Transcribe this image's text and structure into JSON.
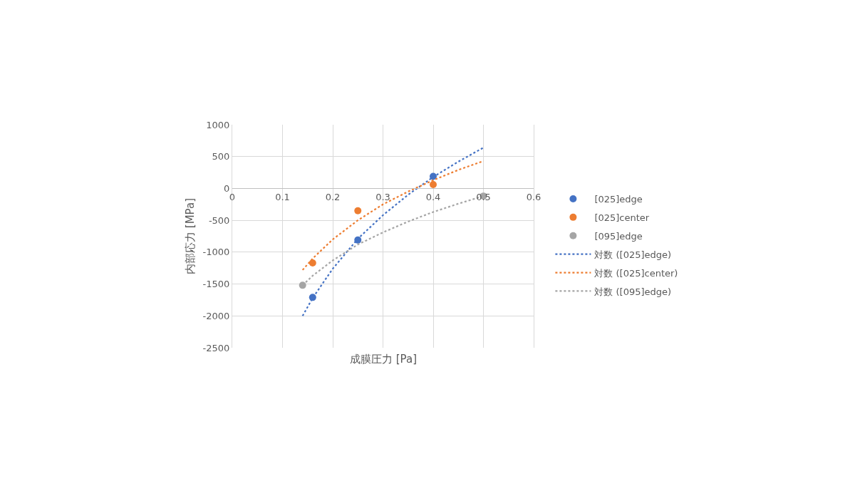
{
  "chart_data": {
    "type": "scatter",
    "xlabel": "成膜圧力 [Pa]",
    "ylabel": "内部応力 [MPa]",
    "xlim": [
      0,
      0.6
    ],
    "xticks": [
      0,
      0.1,
      0.2,
      0.3,
      0.4,
      0.5,
      0.6
    ],
    "ylim": [
      -2500,
      1000
    ],
    "yticks": [
      1000,
      500,
      0,
      -500,
      -1000,
      -1500,
      -2000,
      -2500
    ],
    "grid": true,
    "legend": "right",
    "series": [
      {
        "name": "[025]edge",
        "marker": "circle",
        "color": "#4472c4",
        "x": [
          0.16,
          0.25,
          0.4
        ],
        "values": [
          -1710,
          -810,
          190
        ]
      },
      {
        "name": "[025]center",
        "marker": "circle",
        "color": "#ed7d31",
        "x": [
          0.16,
          0.25,
          0.4
        ],
        "values": [
          -1170,
          -350,
          60
        ]
      },
      {
        "name": "[095]edge",
        "marker": "circle",
        "color": "#a5a5a5",
        "x": [
          0.14,
          0.5
        ],
        "values": [
          -1520,
          -120
        ]
      },
      {
        "name": "対数 ([025]edge)",
        "type": "line",
        "line_style": "dotted",
        "color": "#4472c4",
        "x": [
          0.14,
          0.16,
          0.2,
          0.25,
          0.3,
          0.35,
          0.4,
          0.45,
          0.5
        ],
        "values": [
          -2000,
          -1720,
          -1260,
          -790,
          -420,
          -100,
          180,
          420,
          640
        ]
      },
      {
        "name": "対数 ([025]center)",
        "type": "line",
        "line_style": "dotted",
        "color": "#ed7d31",
        "x": [
          0.14,
          0.16,
          0.2,
          0.25,
          0.3,
          0.35,
          0.4,
          0.45,
          0.5
        ],
        "values": [
          -1280,
          -1100,
          -800,
          -500,
          -250,
          -50,
          130,
          290,
          430
        ]
      },
      {
        "name": "対数 ([095]edge)",
        "type": "line",
        "line_style": "dotted",
        "color": "#a5a5a5",
        "x": [
          0.14,
          0.16,
          0.2,
          0.25,
          0.3,
          0.35,
          0.4,
          0.45,
          0.5
        ],
        "values": [
          -1520,
          -1370,
          -1130,
          -880,
          -690,
          -520,
          -370,
          -240,
          -120
        ]
      }
    ]
  }
}
